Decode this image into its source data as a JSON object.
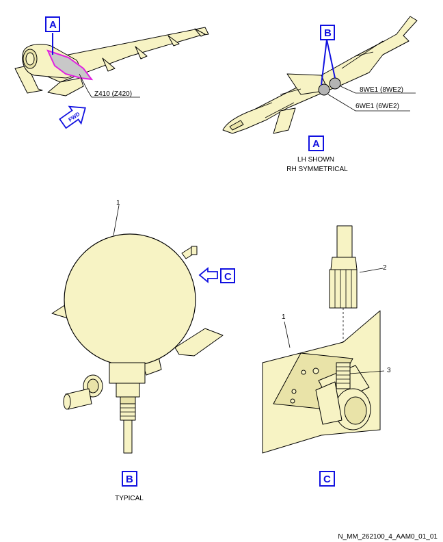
{
  "callouts": {
    "a_top": "A",
    "b_top": "B",
    "a_view": "A",
    "b_view": "B",
    "c_view": "C",
    "c_arrow": "C"
  },
  "labels": {
    "zone": "Z410 (Z420)",
    "fwd": "FWD",
    "wire_upper": "8WE1 (8WE2)",
    "wire_lower": "6WE1 (6WE2)",
    "lh_shown": "LH SHOWN",
    "rh_symmetrical": "RH SYMMETRICAL",
    "typical": "TYPICAL",
    "item_1_b": "1",
    "item_1_c": "1",
    "item_2": "2",
    "item_3": "3"
  },
  "footer": {
    "drawing_id": "N_MM_262100_4_AAM0_01_01"
  },
  "colors": {
    "callout_blue": "#1010e0",
    "part_fill": "#f7f3c4",
    "highlight_magenta": "#e020e0",
    "highlight_grey": "#c8c8c8"
  }
}
